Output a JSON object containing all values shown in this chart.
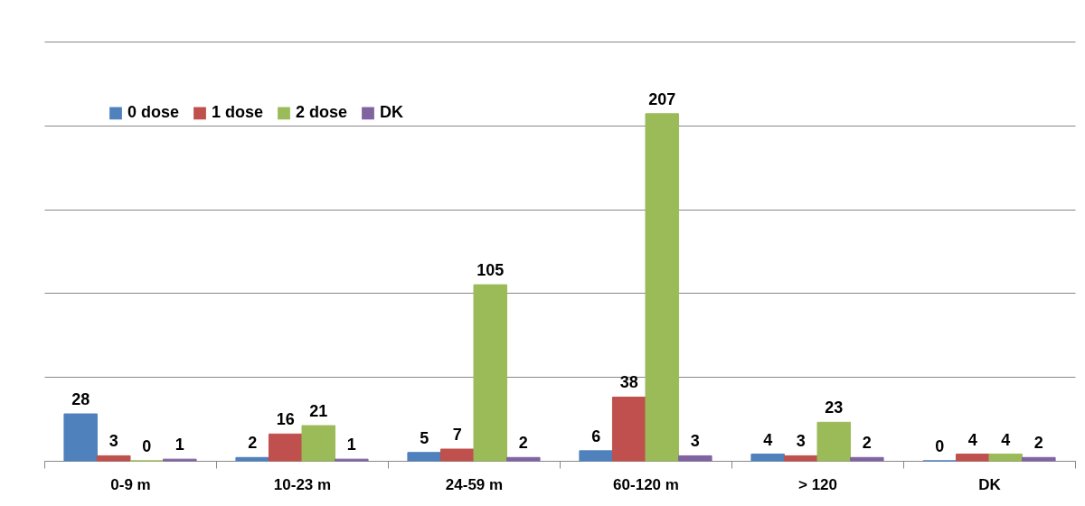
{
  "chart_data": {
    "type": "bar",
    "categories": [
      "0-9 m",
      "10-23 m",
      "24-59 m",
      "60-120 m",
      "> 120",
      "DK"
    ],
    "series": [
      {
        "name": "0 dose",
        "color": "#4f81bd",
        "values": [
          28,
          2,
          5,
          6,
          4,
          0
        ]
      },
      {
        "name": "1 dose",
        "color": "#c0504d",
        "values": [
          3,
          16,
          7,
          38,
          3,
          4
        ]
      },
      {
        "name": "2 dose",
        "color": "#9bbb59",
        "values": [
          0,
          21,
          105,
          207,
          23,
          4
        ]
      },
      {
        "name": "DK",
        "color": "#8064a2",
        "values": [
          1,
          1,
          2,
          3,
          2,
          2
        ]
      }
    ],
    "ylim": [
      0,
      250
    ],
    "yticks": [
      {
        "value": 0,
        "label": null
      },
      {
        "value": 50,
        "label": null
      },
      {
        "value": 100,
        "label": null
      },
      {
        "value": 150,
        "label": null
      },
      {
        "value": 200,
        "label": null
      },
      {
        "value": 250,
        "label": null
      }
    ],
    "grid": "y",
    "tick_labels": "x",
    "legend": "top left",
    "data_labels": true
  }
}
